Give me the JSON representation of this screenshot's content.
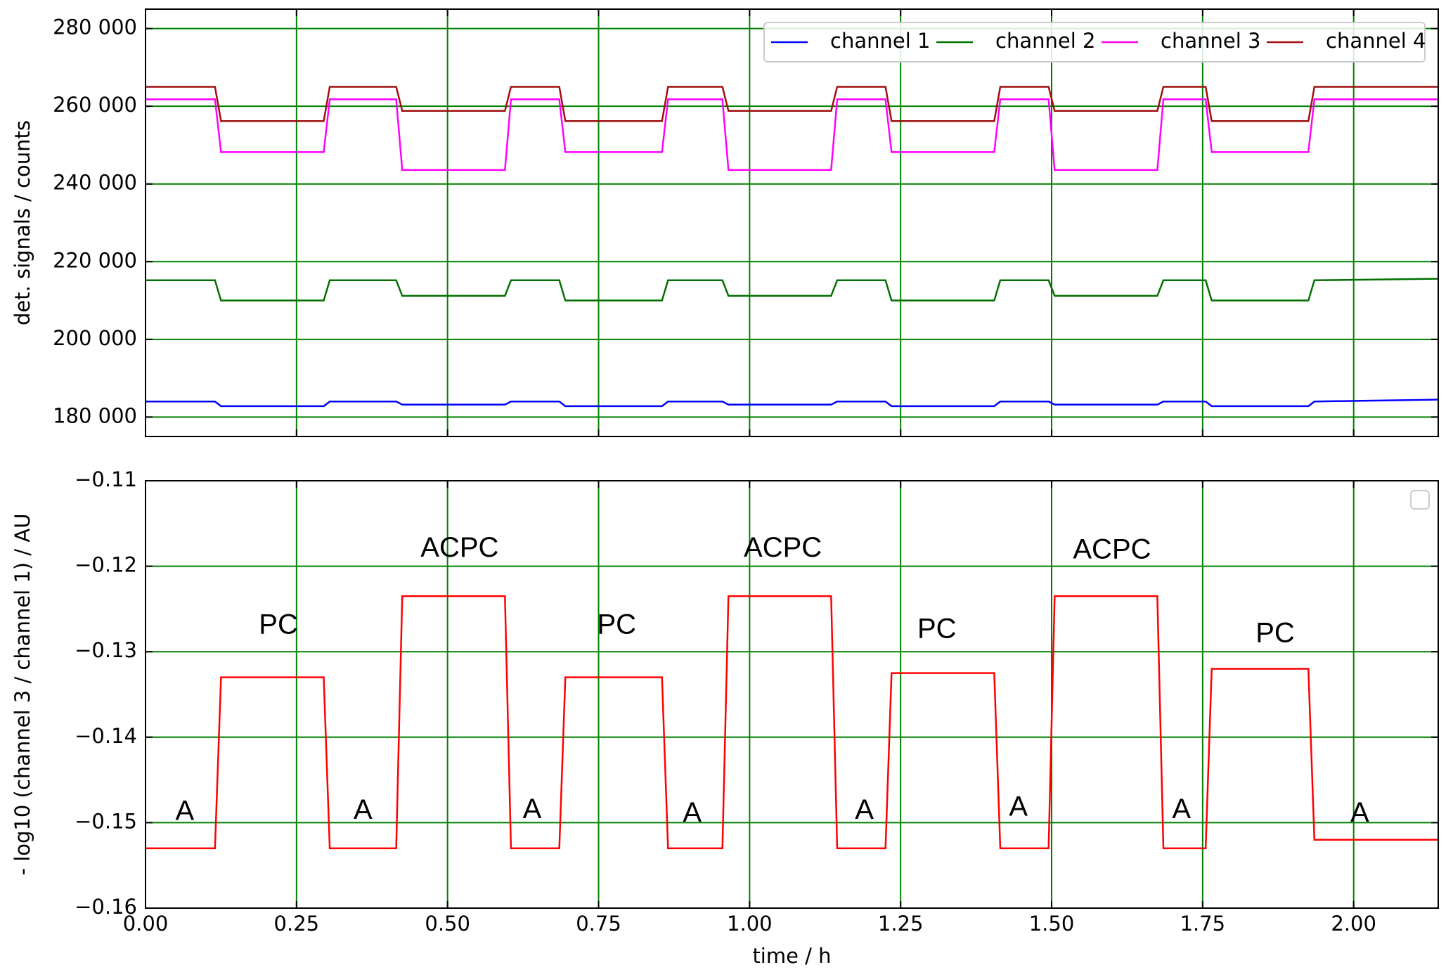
{
  "chart_data": [
    {
      "type": "line",
      "ylabel": "det. signals / counts",
      "xlim": [
        0,
        2.14
      ],
      "ylim": [
        175000,
        285000
      ],
      "xticks": [
        {
          "value": 0,
          "label": "0.00"
        },
        {
          "value": 0.25,
          "label": "0.25"
        },
        {
          "value": 0.5,
          "label": "0.50"
        },
        {
          "value": 0.75,
          "label": "0.75"
        },
        {
          "value": 1.0,
          "label": "1.00"
        },
        {
          "value": 1.25,
          "label": "1.25"
        },
        {
          "value": 1.5,
          "label": "1.50"
        },
        {
          "value": 1.75,
          "label": "1.75"
        },
        {
          "value": 2.0,
          "label": "2.00"
        }
      ],
      "xticklabels": false,
      "yticks": [
        {
          "value": 180000,
          "label": "180 000"
        },
        {
          "value": 200000,
          "label": "200 000"
        },
        {
          "value": 220000,
          "label": "220 000"
        },
        {
          "value": 240000,
          "label": "240 000"
        },
        {
          "value": 260000,
          "label": "260 000"
        },
        {
          "value": 280000,
          "label": "280 000"
        }
      ],
      "grid": true,
      "grid_color": "#008000",
      "legend": "upper right",
      "x": [
        0,
        0.115,
        0.125,
        0.295,
        0.305,
        0.415,
        0.425,
        0.595,
        0.605,
        0.685,
        0.695,
        0.855,
        0.865,
        0.955,
        0.965,
        1.135,
        1.145,
        1.225,
        1.235,
        1.405,
        1.415,
        1.495,
        1.505,
        1.675,
        1.685,
        1.755,
        1.765,
        1.925,
        1.935,
        2.14
      ],
      "series": [
        {
          "name": "channel 1",
          "color": "#0000ff",
          "values": [
            184000,
            184000,
            182800,
            182800,
            184000,
            184000,
            183200,
            183200,
            184000,
            184000,
            182800,
            182800,
            184000,
            184000,
            183200,
            183200,
            184000,
            184000,
            182800,
            182800,
            184000,
            184000,
            183200,
            183200,
            184000,
            184000,
            182800,
            182800,
            184000,
            184500
          ]
        },
        {
          "name": "channel 2",
          "color": "#007000",
          "values": [
            215200,
            215200,
            210000,
            210000,
            215200,
            215200,
            211200,
            211200,
            215200,
            215200,
            210000,
            210000,
            215200,
            215200,
            211200,
            211200,
            215200,
            215200,
            210000,
            210000,
            215200,
            215200,
            211200,
            211200,
            215200,
            215200,
            210000,
            210000,
            215200,
            215600
          ]
        },
        {
          "name": "channel 3",
          "color": "#ff00ff",
          "values": [
            261800,
            261800,
            248200,
            248200,
            261800,
            261800,
            243600,
            243600,
            261800,
            261800,
            248200,
            248200,
            261800,
            261800,
            243600,
            243600,
            261800,
            261800,
            248200,
            248200,
            261800,
            261800,
            243600,
            243600,
            261800,
            261800,
            248200,
            248200,
            261800,
            261800
          ]
        },
        {
          "name": "channel 4",
          "color": "#a01010",
          "values": [
            265000,
            265000,
            256200,
            256200,
            265000,
            265000,
            258800,
            258800,
            265000,
            265000,
            256200,
            256200,
            265000,
            265000,
            258800,
            258800,
            265000,
            265000,
            256200,
            256200,
            265000,
            265000,
            258800,
            258800,
            265000,
            265000,
            256200,
            256200,
            265000,
            265000
          ]
        }
      ]
    },
    {
      "type": "line",
      "xlabel": "time / h",
      "ylabel": "- log10 (channel 3 / channel 1)  / AU",
      "xlim": [
        0,
        2.14
      ],
      "ylim": [
        -0.16,
        -0.11
      ],
      "xticks": [
        {
          "value": 0,
          "label": "0.00"
        },
        {
          "value": 0.25,
          "label": "0.25"
        },
        {
          "value": 0.5,
          "label": "0.50"
        },
        {
          "value": 0.75,
          "label": "0.75"
        },
        {
          "value": 1.0,
          "label": "1.00"
        },
        {
          "value": 1.25,
          "label": "1.25"
        },
        {
          "value": 1.5,
          "label": "1.50"
        },
        {
          "value": 1.75,
          "label": "1.75"
        },
        {
          "value": 2.0,
          "label": "2.00"
        }
      ],
      "xticklabels": true,
      "yticks": [
        {
          "value": -0.16,
          "label": "−0.16"
        },
        {
          "value": -0.15,
          "label": "−0.15"
        },
        {
          "value": -0.14,
          "label": "−0.14"
        },
        {
          "value": -0.13,
          "label": "−0.13"
        },
        {
          "value": -0.12,
          "label": "−0.12"
        },
        {
          "value": -0.11,
          "label": "−0.11"
        }
      ],
      "grid": true,
      "grid_color": "#008000",
      "x": [
        0,
        0.115,
        0.125,
        0.295,
        0.305,
        0.415,
        0.425,
        0.595,
        0.605,
        0.685,
        0.695,
        0.855,
        0.865,
        0.955,
        0.965,
        1.135,
        1.145,
        1.225,
        1.235,
        1.405,
        1.415,
        1.495,
        1.505,
        1.675,
        1.685,
        1.755,
        1.765,
        1.925,
        1.935,
        2.14
      ],
      "series": [
        {
          "color": "#ff0000",
          "values": [
            -0.153,
            -0.153,
            -0.133,
            -0.133,
            -0.153,
            -0.153,
            -0.1235,
            -0.1235,
            -0.153,
            -0.153,
            -0.133,
            -0.133,
            -0.153,
            -0.153,
            -0.1235,
            -0.1235,
            -0.153,
            -0.153,
            -0.1325,
            -0.1325,
            -0.153,
            -0.153,
            -0.1235,
            -0.1235,
            -0.153,
            -0.153,
            -0.132,
            -0.132,
            -0.152,
            -0.152
          ]
        }
      ],
      "annotations": [
        {
          "text": "A",
          "x": 0.065,
          "y": -0.1488
        },
        {
          "text": "PC",
          "x": 0.22,
          "y": -0.127
        },
        {
          "text": "A",
          "x": 0.36,
          "y": -0.1487
        },
        {
          "text": "ACPC",
          "x": 0.52,
          "y": -0.118
        },
        {
          "text": "A",
          "x": 0.64,
          "y": -0.1486
        },
        {
          "text": "PC",
          "x": 0.78,
          "y": -0.127
        },
        {
          "text": "A",
          "x": 0.905,
          "y": -0.149
        },
        {
          "text": "ACPC",
          "x": 1.055,
          "y": -0.118
        },
        {
          "text": "A",
          "x": 1.19,
          "y": -0.1487
        },
        {
          "text": "PC",
          "x": 1.31,
          "y": -0.1275
        },
        {
          "text": "A",
          "x": 1.445,
          "y": -0.1483
        },
        {
          "text": "ACPC",
          "x": 1.6,
          "y": -0.1182
        },
        {
          "text": "A",
          "x": 1.715,
          "y": -0.1486
        },
        {
          "text": "PC",
          "x": 1.87,
          "y": -0.128
        },
        {
          "text": "A",
          "x": 2.01,
          "y": -0.149
        }
      ]
    }
  ]
}
